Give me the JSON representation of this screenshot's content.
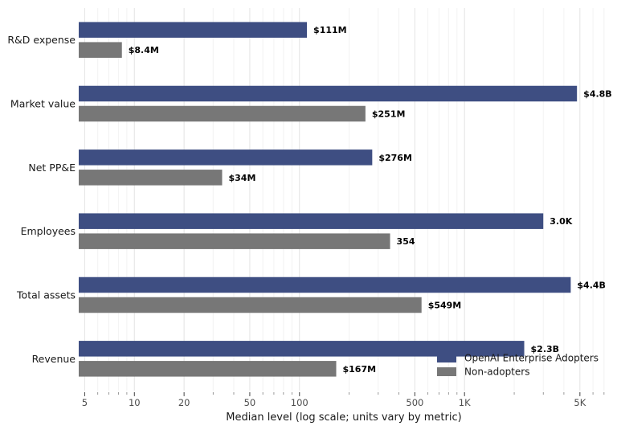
{
  "chart_data": {
    "type": "bar",
    "orientation": "horizontal",
    "xscale": "log",
    "xlabel": "Median level (log scale; units vary by metric)",
    "xlim": [
      4.6,
      7500
    ],
    "grid": true,
    "legend_position": "bottom-right",
    "categories": [
      "R&D expense",
      "Market value",
      "Net PP&E",
      "Employees",
      "Total assets",
      "Revenue"
    ],
    "series": [
      {
        "name": "OpenAI Enterprise Adopters",
        "color": "#3e4e82",
        "values": [
          111,
          4800,
          276,
          3000,
          4400,
          2300
        ],
        "labels": [
          "$111M",
          "$4.8B",
          "$276M",
          "3.0K",
          "$4.4B",
          "$2.3B"
        ]
      },
      {
        "name": "Non-adopters",
        "color": "#777777",
        "values": [
          8.4,
          251,
          34,
          354,
          549,
          167
        ],
        "labels": [
          "$8.4M",
          "$251M",
          "$34M",
          "354",
          "$549M",
          "$167M"
        ]
      }
    ],
    "major_ticks": [
      {
        "value": 5,
        "label": "5"
      },
      {
        "value": 10,
        "label": "10"
      },
      {
        "value": 20,
        "label": "20"
      },
      {
        "value": 50,
        "label": "50"
      },
      {
        "value": 100,
        "label": "100"
      },
      {
        "value": 500,
        "label": "500"
      },
      {
        "value": 1000,
        "label": "1K"
      },
      {
        "value": 5000,
        "label": "5K"
      }
    ]
  }
}
